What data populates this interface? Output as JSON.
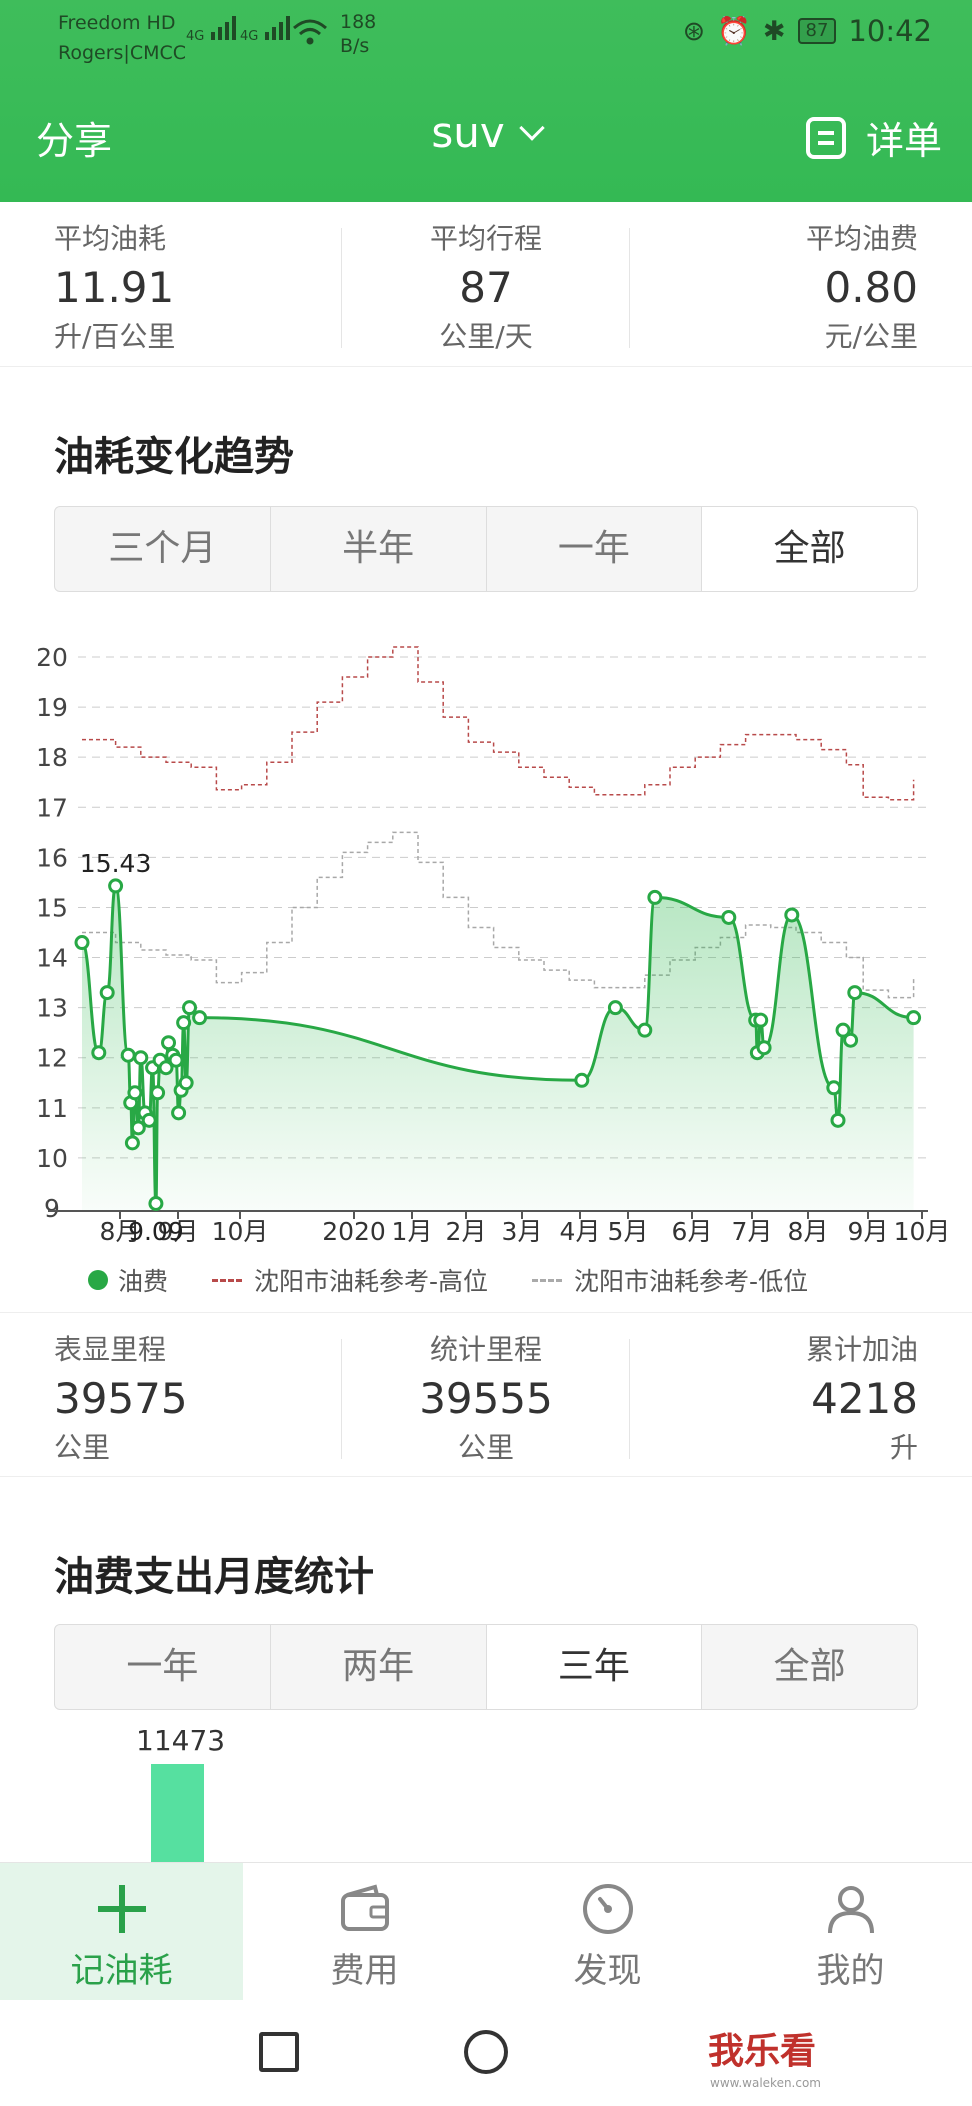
{
  "status": {
    "carrier_line1": "Freedom HD",
    "carrier_line2": "Rogers|CMCC",
    "sig1": "4G",
    "sig2": "4G",
    "net_speed": "188",
    "net_speed_unit": "B/s",
    "battery": "87",
    "time": "10:42"
  },
  "nav": {
    "share": "分享",
    "title": "suv",
    "detail": "详单"
  },
  "summary": {
    "avg_consumption": {
      "label": "平均油耗",
      "value": "11.91",
      "unit": "升/百公里"
    },
    "avg_trip": {
      "label": "平均行程",
      "value": "87",
      "unit": "公里/天"
    },
    "avg_cost": {
      "label": "平均油费",
      "value": "0.80",
      "unit": "元/公里"
    }
  },
  "trend": {
    "title": "油耗变化趋势",
    "ranges": [
      "三个月",
      "半年",
      "一年",
      "全部"
    ],
    "selected": "全部"
  },
  "chart_data": {
    "type": "line",
    "y_ticks": [
      "20",
      "19",
      "18",
      "17",
      "16",
      "15",
      "14",
      "13",
      "12",
      "11",
      "10",
      "9"
    ],
    "ylim": [
      9,
      20.5
    ],
    "x_ticks": [
      "8月",
      "9月",
      "10月",
      "2020",
      "1月",
      "2月",
      "3月",
      "4月",
      "5月",
      "6月",
      "7月",
      "8月",
      "9月",
      "10月"
    ],
    "annotations": {
      "max": "15.43",
      "min": "9.09"
    },
    "series": [
      {
        "name": "油费",
        "color": "#28a845",
        "points": [
          [
            0.0,
            14.3
          ],
          [
            0.02,
            12.1
          ],
          [
            0.03,
            13.3
          ],
          [
            0.04,
            15.43
          ],
          [
            0.055,
            12.05
          ],
          [
            0.058,
            11.1
          ],
          [
            0.06,
            10.3
          ],
          [
            0.063,
            11.3
          ],
          [
            0.067,
            10.6
          ],
          [
            0.07,
            12.0
          ],
          [
            0.075,
            10.9
          ],
          [
            0.08,
            10.75
          ],
          [
            0.084,
            11.8
          ],
          [
            0.088,
            9.09
          ],
          [
            0.09,
            11.3
          ],
          [
            0.093,
            11.95
          ],
          [
            0.1,
            11.8
          ],
          [
            0.103,
            12.3
          ],
          [
            0.108,
            12.05
          ],
          [
            0.112,
            11.95
          ],
          [
            0.115,
            10.9
          ],
          [
            0.118,
            11.35
          ],
          [
            0.121,
            12.7
          ],
          [
            0.124,
            11.5
          ],
          [
            0.128,
            13.0
          ],
          [
            0.14,
            12.8
          ],
          [
            0.595,
            11.55
          ],
          [
            0.635,
            13.0
          ],
          [
            0.67,
            12.55
          ],
          [
            0.682,
            15.2
          ],
          [
            0.77,
            14.8
          ],
          [
            0.802,
            12.75
          ],
          [
            0.804,
            12.1
          ],
          [
            0.808,
            12.75
          ],
          [
            0.812,
            12.2
          ],
          [
            0.845,
            14.85
          ],
          [
            0.895,
            11.4
          ],
          [
            0.9,
            10.75
          ],
          [
            0.906,
            12.55
          ],
          [
            0.915,
            12.35
          ],
          [
            0.92,
            13.3
          ],
          [
            0.99,
            12.8
          ]
        ]
      },
      {
        "name": "沈阳市油耗参考-高位",
        "color": "#b84a4a",
        "points": [
          [
            0.0,
            18.35
          ],
          [
            0.04,
            18.2
          ],
          [
            0.07,
            18.0
          ],
          [
            0.1,
            17.9
          ],
          [
            0.13,
            17.8
          ],
          [
            0.16,
            17.35
          ],
          [
            0.19,
            17.45
          ],
          [
            0.22,
            17.9
          ],
          [
            0.25,
            18.5
          ],
          [
            0.28,
            19.1
          ],
          [
            0.31,
            19.6
          ],
          [
            0.34,
            20.0
          ],
          [
            0.37,
            20.2
          ],
          [
            0.4,
            19.5
          ],
          [
            0.43,
            18.8
          ],
          [
            0.46,
            18.3
          ],
          [
            0.49,
            18.1
          ],
          [
            0.52,
            17.8
          ],
          [
            0.55,
            17.6
          ],
          [
            0.58,
            17.4
          ],
          [
            0.61,
            17.25
          ],
          [
            0.64,
            17.25
          ],
          [
            0.67,
            17.45
          ],
          [
            0.7,
            17.8
          ],
          [
            0.73,
            18.0
          ],
          [
            0.76,
            18.25
          ],
          [
            0.79,
            18.45
          ],
          [
            0.82,
            18.45
          ],
          [
            0.85,
            18.35
          ],
          [
            0.88,
            18.15
          ],
          [
            0.91,
            17.85
          ],
          [
            0.93,
            17.2
          ],
          [
            0.96,
            17.15
          ],
          [
            0.99,
            17.55
          ]
        ]
      },
      {
        "name": "沈阳市油耗参考-低位",
        "color": "#a8a8a8",
        "points": [
          [
            0.0,
            14.5
          ],
          [
            0.04,
            14.3
          ],
          [
            0.07,
            14.15
          ],
          [
            0.1,
            14.05
          ],
          [
            0.13,
            13.95
          ],
          [
            0.16,
            13.5
          ],
          [
            0.19,
            13.7
          ],
          [
            0.22,
            14.3
          ],
          [
            0.25,
            15.0
          ],
          [
            0.28,
            15.6
          ],
          [
            0.31,
            16.1
          ],
          [
            0.34,
            16.3
          ],
          [
            0.37,
            16.5
          ],
          [
            0.4,
            15.9
          ],
          [
            0.43,
            15.2
          ],
          [
            0.46,
            14.6
          ],
          [
            0.49,
            14.2
          ],
          [
            0.52,
            13.95
          ],
          [
            0.55,
            13.75
          ],
          [
            0.58,
            13.55
          ],
          [
            0.61,
            13.4
          ],
          [
            0.64,
            13.4
          ],
          [
            0.67,
            13.65
          ],
          [
            0.7,
            13.95
          ],
          [
            0.73,
            14.2
          ],
          [
            0.76,
            14.4
          ],
          [
            0.79,
            14.65
          ],
          [
            0.82,
            14.6
          ],
          [
            0.85,
            14.5
          ],
          [
            0.88,
            14.3
          ],
          [
            0.91,
            14.0
          ],
          [
            0.93,
            13.35
          ],
          [
            0.96,
            13.2
          ],
          [
            0.99,
            13.6
          ]
        ]
      }
    ]
  },
  "legend": {
    "fuel": "油费",
    "high": "沈阳市油耗参考-高位",
    "low": "沈阳市油耗参考-低位"
  },
  "mileage": {
    "odometer": {
      "label": "表显里程",
      "value": "39575",
      "unit": "公里"
    },
    "stat_mileage": {
      "label": "统计里程",
      "value": "39555",
      "unit": "公里"
    },
    "total_fuel": {
      "label": "累计加油",
      "value": "4218",
      "unit": "升"
    }
  },
  "monthly": {
    "title": "油费支出月度统计",
    "ranges": [
      "一年",
      "两年",
      "三年",
      "全部"
    ],
    "selected": "三年",
    "bar_value": "11473",
    "bar_color": "#56e0a0"
  },
  "tabbar": {
    "record": "记油耗",
    "expense": "费用",
    "discover": "发现",
    "mine": "我的"
  },
  "watermark": {
    "main": "我乐看",
    "sub": "www.waleken.com"
  }
}
